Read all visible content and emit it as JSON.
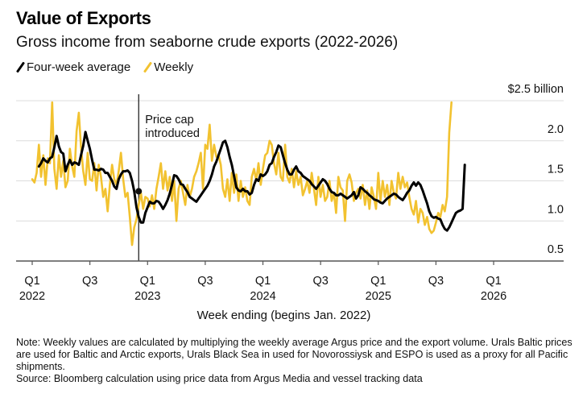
{
  "chart_data": {
    "type": "line",
    "title": "Value of Exports",
    "subtitle": "Gross income from seaborne crude exports (2022-2026)",
    "xlabel": "Week ending (begins Jan. 2022)",
    "ylabel": "",
    "y_unit_label": "$2.5 billion",
    "ylim": [
      0.5,
      2.5
    ],
    "yticks": [
      {
        "value": 2.5,
        "label": "$2.5 billion"
      },
      {
        "value": 2.0,
        "label": "2.0"
      },
      {
        "value": 1.5,
        "label": "1.5"
      },
      {
        "value": 1.0,
        "label": "1.0"
      },
      {
        "value": 0.5,
        "label": "0.5"
      }
    ],
    "xticks": [
      {
        "week": 0,
        "label1": "Q1",
        "label2": "2022"
      },
      {
        "week": 26,
        "label1": "Q3",
        "label2": ""
      },
      {
        "week": 52,
        "label1": "Q1",
        "label2": "2023"
      },
      {
        "week": 78,
        "label1": "Q3",
        "label2": ""
      },
      {
        "week": 104,
        "label1": "Q1",
        "label2": "2024"
      },
      {
        "week": 130,
        "label1": "Q3",
        "label2": ""
      },
      {
        "week": 156,
        "label1": "Q1",
        "label2": "2025"
      },
      {
        "week": 182,
        "label1": "Q3",
        "label2": ""
      },
      {
        "week": 208,
        "label1": "Q1",
        "label2": "2026"
      }
    ],
    "x_max_week": 239,
    "grid": true,
    "legend_position": "top-left",
    "annotation": {
      "week": 48,
      "value": 1.37,
      "line1": "Price cap",
      "line2": "introduced"
    },
    "series": [
      {
        "name": "Four-week average",
        "color": "#000000",
        "start_week": 3,
        "values": [
          1.68,
          1.72,
          1.78,
          1.75,
          1.73,
          1.78,
          1.8,
          1.92,
          2.06,
          1.93,
          1.86,
          1.84,
          1.62,
          1.7,
          1.76,
          1.7,
          1.73,
          1.72,
          1.7,
          1.82,
          1.94,
          2.11,
          2.0,
          1.9,
          1.76,
          1.64,
          1.64,
          1.63,
          1.65,
          1.64,
          1.6,
          1.6,
          1.55,
          1.5,
          1.43,
          1.4,
          1.52,
          1.58,
          1.62,
          1.62,
          1.63,
          1.6,
          1.5,
          1.37,
          1.17,
          1.05,
          0.98,
          0.98,
          1.1,
          1.17,
          1.24,
          1.22,
          1.22,
          1.25,
          1.24,
          1.2,
          1.15,
          1.2,
          1.26,
          1.34,
          1.45,
          1.57,
          1.56,
          1.52,
          1.46,
          1.45,
          1.4,
          1.36,
          1.3,
          1.28,
          1.26,
          1.24,
          1.28,
          1.32,
          1.36,
          1.4,
          1.44,
          1.5,
          1.58,
          1.68,
          1.74,
          1.82,
          1.9,
          1.98,
          2.0,
          1.92,
          1.8,
          1.7,
          1.56,
          1.42,
          1.38,
          1.37,
          1.4,
          1.37,
          1.37,
          1.33,
          1.35,
          1.45,
          1.52,
          1.5,
          1.58,
          1.56,
          1.58,
          1.62,
          1.7,
          1.72,
          1.8,
          1.86,
          1.94,
          1.92,
          1.82,
          1.72,
          1.64,
          1.58,
          1.58,
          1.64,
          1.68,
          1.62,
          1.6,
          1.56,
          1.54,
          1.52,
          1.5,
          1.46,
          1.43,
          1.4,
          1.44,
          1.48,
          1.52,
          1.5,
          1.46,
          1.4,
          1.36,
          1.35,
          1.32,
          1.32,
          1.34,
          1.32,
          1.3,
          1.28,
          1.3,
          1.32,
          1.36,
          1.28,
          1.32,
          1.42,
          1.4,
          1.37,
          1.35,
          1.32,
          1.3,
          1.27,
          1.26,
          1.25,
          1.23,
          1.22,
          1.25,
          1.28,
          1.3,
          1.32,
          1.34,
          1.33,
          1.3,
          1.28,
          1.26,
          1.3,
          1.35,
          1.38,
          1.44,
          1.48,
          1.44,
          1.48,
          1.45,
          1.38,
          1.3,
          1.22,
          1.12,
          1.06,
          1.04,
          1.05,
          1.03,
          1.02,
          0.95,
          0.9,
          0.88,
          0.92,
          0.98,
          1.04,
          1.1,
          1.12,
          1.13,
          1.15,
          1.7
        ]
      },
      {
        "name": "Weekly",
        "color": "#f2c230",
        "start_week": 0,
        "values": [
          1.52,
          1.48,
          1.6,
          1.95,
          1.55,
          1.82,
          1.45,
          1.78,
          1.72,
          2.48,
          1.65,
          1.4,
          1.82,
          1.55,
          1.75,
          1.42,
          1.5,
          1.9,
          1.68,
          1.55,
          2.12,
          2.35,
          1.92,
          1.62,
          1.45,
          1.85,
          1.52,
          1.5,
          1.72,
          1.38,
          1.7,
          1.55,
          1.3,
          1.4,
          1.12,
          1.45,
          1.7,
          1.52,
          1.45,
          1.62,
          1.85,
          1.52,
          1.3,
          1.35,
          1.05,
          0.7,
          0.92,
          1.02,
          1.2,
          1.35,
          1.15,
          1.3,
          1.28,
          1.18,
          1.32,
          1.15,
          1.4,
          1.55,
          1.72,
          1.4,
          1.62,
          1.38,
          1.55,
          1.25,
          1.5,
          1.0,
          1.4,
          1.5,
          1.35,
          1.2,
          1.45,
          1.3,
          1.4,
          1.55,
          1.62,
          1.72,
          1.85,
          1.4,
          1.95,
          1.9,
          2.2,
          1.75,
          1.95,
          1.8,
          1.82,
          1.7,
          1.4,
          1.3,
          1.52,
          1.25,
          1.6,
          1.35,
          1.58,
          1.25,
          1.5,
          1.3,
          1.42,
          1.25,
          1.2,
          1.55,
          1.65,
          1.5,
          1.72,
          1.45,
          1.65,
          1.82,
          1.85,
          2.0,
          1.95,
          1.72,
          1.58,
          1.85,
          1.55,
          1.5,
          1.95,
          1.55,
          1.48,
          1.65,
          1.42,
          1.62,
          1.45,
          1.55,
          1.32,
          1.4,
          1.5,
          1.35,
          1.6,
          1.4,
          1.2,
          1.55,
          1.3,
          1.45,
          1.25,
          1.3,
          1.5,
          1.25,
          1.35,
          1.1,
          1.55,
          1.42,
          1.38,
          1.0,
          1.5,
          1.58,
          1.48,
          1.25,
          1.35,
          1.4,
          1.28,
          1.45,
          1.2,
          1.38,
          1.15,
          1.42,
          1.3,
          1.15,
          1.6,
          1.25,
          1.5,
          1.3,
          1.45,
          1.2,
          1.5,
          1.35,
          1.28,
          1.6,
          1.4,
          1.55,
          1.42,
          1.48,
          1.3,
          1.15,
          1.08,
          1.25,
          0.98,
          1.15,
          1.1,
          0.95,
          1.05,
          0.9,
          0.85,
          0.88,
          0.98,
          1.1,
          1.05,
          1.2,
          1.12,
          1.3,
          2.1,
          2.48
        ]
      }
    ]
  },
  "header": {
    "title": "Value of Exports",
    "subtitle": "Gross income from seaborne crude exports (2022-2026)"
  },
  "legend": {
    "items": [
      {
        "label": "Four-week average",
        "color": "#000000"
      },
      {
        "label": "Weekly",
        "color": "#f2c230"
      }
    ]
  },
  "notes": {
    "note": "Note: Weekly values are calculated by multiplying the weekly average Argus price and the export volume. Urals Baltic prices are used for Baltic and Arctic exports, Urals Black Sea in used for Novorossiysk and ESPO is used as a proxy for all Pacific shipments.",
    "source": "Source: Bloomberg calculation using price data from Argus Media and vessel tracking data"
  }
}
